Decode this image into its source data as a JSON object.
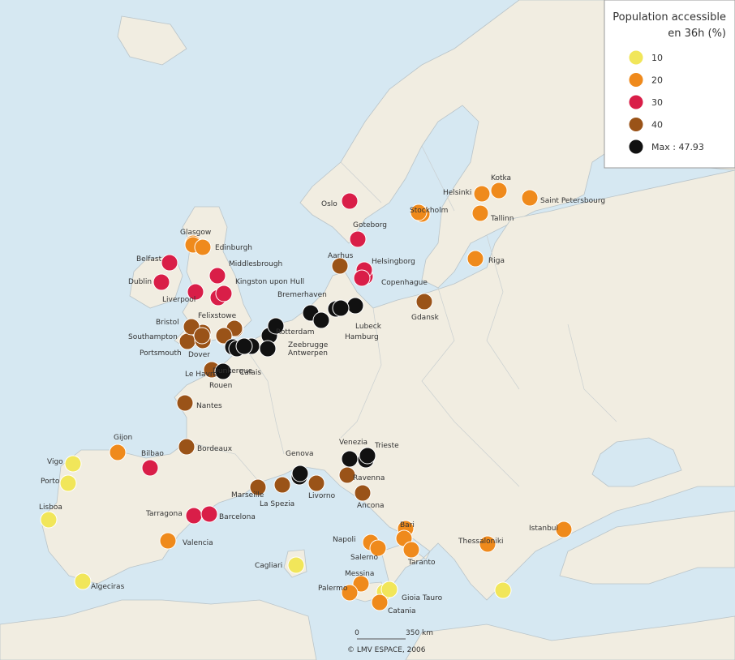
{
  "legend": {
    "title_lines": [
      "Population accessible",
      "en 36h (%)"
    ],
    "items": [
      {
        "label": "10",
        "color": "#f1e65a",
        "ports": [
          "Vigo",
          "Porto",
          "Lisboa",
          "Algeciras",
          "Cagliari",
          "Gioia Tauro"
        ]
      },
      {
        "label": "20",
        "color": "#ef8a1c",
        "ports": [
          "Gijon",
          "Valencia",
          "Glasgow",
          "Edinburgh",
          "Helsinki",
          "Kotka",
          "Saint Petersbourg",
          "Stockholm",
          "Tallinn",
          "Riga",
          "Napoli",
          "Salerno",
          "Bari",
          "Taranto",
          "Messina",
          "Palermo",
          "Catania",
          "Thessaloniki",
          "Istanbul"
        ]
      },
      {
        "label": "30",
        "color": "#d91e48",
        "ports": [
          "Oslo",
          "Goteborg",
          "Helsingborg",
          "Copenhague",
          "Belfast",
          "Dublin",
          "Liverpool",
          "Middlesbrough",
          "Kingston upon Hull",
          "Bilbao",
          "Tarragona",
          "Barcelona"
        ]
      },
      {
        "label": "40",
        "color": "#9a5318",
        "ports": [
          "Aarhus",
          "Gdansk",
          "Bristol",
          "Southampton",
          "Portsmouth",
          "Le Havre",
          "Nantes",
          "Bordeaux",
          "Marseille",
          "La Spezia",
          "Livorno",
          "Ravenna",
          "Ancona",
          "Felixstowe",
          "Dover"
        ]
      },
      {
        "label": "Max : 47.93",
        "color": "#111111",
        "ports": [
          "Bremerhaven",
          "Hamburg",
          "Lubeck",
          "Rotterdam",
          "Antwerpen",
          "Zeebrugge",
          "Dunkerque",
          "Calais",
          "Rouen",
          "Genova",
          "Venezia",
          "Trieste"
        ]
      }
    ]
  },
  "scale": {
    "zero": "0",
    "distance": "350 km"
  },
  "credit": "© LMV ESPACE, 2006"
}
